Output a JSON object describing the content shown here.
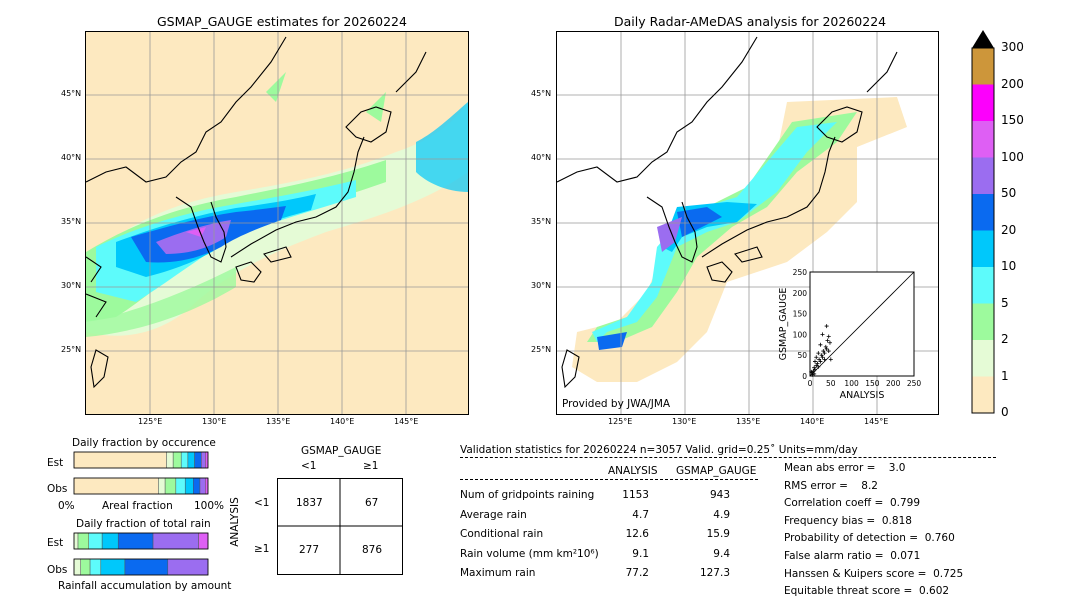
{
  "left_map": {
    "title": "GSMAP_GAUGE estimates for 20260224",
    "lat_labels": [
      "45°N",
      "40°N",
      "35°N",
      "30°N",
      "25°N"
    ],
    "lon_labels": [
      "125°E",
      "130°E",
      "135°E",
      "140°E",
      "145°E"
    ]
  },
  "right_map": {
    "title": "Daily Radar-AMeDAS analysis for 20260224",
    "lat_labels": [
      "45°N",
      "40°N",
      "35°N",
      "30°N",
      "25°N"
    ],
    "lon_labels": [
      "125°E",
      "130°E",
      "135°E",
      "140°E",
      "145°E"
    ],
    "credit": "Provided by JWA/JMA"
  },
  "scatter": {
    "xlabel": "ANALYSIS",
    "ylabel": "GSMAP_GAUGE",
    "ticks": [
      "0",
      "50",
      "100",
      "150",
      "200",
      "250"
    ]
  },
  "colorbar": {
    "ticks": [
      "0",
      "1",
      "2",
      "5",
      "10",
      "20",
      "50",
      "100",
      "150",
      "200",
      "300"
    ],
    "colors": [
      "#fde9c0",
      "#e5fbd6",
      "#9dfa9d",
      "#5dfbfb",
      "#00c8fb",
      "#0a6af0",
      "#9b6df0",
      "#de5ff4",
      "#fc00fc",
      "#cd963a"
    ]
  },
  "occurrence": {
    "title": "Daily fraction by occurence",
    "rows": [
      "Est",
      "Obs"
    ],
    "xlabel_left": "0%",
    "xlabel_mid": "Areal fraction",
    "xlabel_right": "100%"
  },
  "total_rain": {
    "title": "Daily fraction of total rain",
    "rows": [
      "Est",
      "Obs"
    ],
    "xlabel": "Rainfall accumulation by amount"
  },
  "contingency": {
    "col_title": "GSMAP_GAUGE",
    "col_lt": "<1",
    "col_ge": "≥1",
    "row_title": "ANALYSIS",
    "row_lt": "<1",
    "row_ge": "≥1",
    "a": "1837",
    "b": "67",
    "c": "277",
    "d": "876"
  },
  "validation": {
    "header": "Validation statistics for 20260224  n=3057 Valid. grid=0.25˚ Units=mm/day",
    "col1": "ANALYSIS",
    "col2": "GSMAP_GAUGE",
    "rows": [
      {
        "label": "Num of gridpoints raining",
        "a": "1153",
        "g": "943"
      },
      {
        "label": "Average rain",
        "a": "4.7",
        "g": "4.9"
      },
      {
        "label": "Conditional rain",
        "a": "12.6",
        "g": "15.9"
      },
      {
        "label": "Rain volume (mm km²10⁶)",
        "a": "9.1",
        "g": "9.4"
      },
      {
        "label": "Maximum rain",
        "a": "77.2",
        "g": "127.3"
      }
    ],
    "scores": [
      "Mean abs error =    3.0",
      "RMS error =    8.2",
      "Correlation coeff =  0.799",
      "Frequency bias =  0.818",
      "Probability of detection =  0.760",
      "False alarm ratio =  0.071",
      "Hanssen & Kuipers score =  0.725",
      "Equitable threat score =  0.602"
    ]
  },
  "chart_data": [
    {
      "type": "scatter",
      "title": "",
      "xlabel": "ANALYSIS",
      "ylabel": "GSMAP_GAUGE",
      "xlim": [
        0,
        250
      ],
      "ylim": [
        0,
        250
      ],
      "points": [
        [
          5,
          8
        ],
        [
          8,
          12
        ],
        [
          10,
          20
        ],
        [
          12,
          15
        ],
        [
          15,
          25
        ],
        [
          18,
          30
        ],
        [
          20,
          22
        ],
        [
          22,
          40
        ],
        [
          25,
          35
        ],
        [
          28,
          50
        ],
        [
          30,
          45
        ],
        [
          32,
          60
        ],
        [
          35,
          55
        ],
        [
          38,
          70
        ],
        [
          40,
          65
        ],
        [
          42,
          85
        ],
        [
          45,
          60
        ],
        [
          48,
          80
        ],
        [
          30,
          100
        ],
        [
          25,
          75
        ],
        [
          15,
          45
        ],
        [
          20,
          55
        ],
        [
          35,
          40
        ],
        [
          50,
          40
        ],
        [
          45,
          95
        ],
        [
          40,
          120
        ],
        [
          10,
          5
        ],
        [
          6,
          3
        ],
        [
          3,
          10
        ],
        [
          12,
          35
        ]
      ]
    },
    {
      "type": "bar",
      "title": "Daily fraction by occurence",
      "categories": [
        "Est",
        "Obs"
      ],
      "series": [
        {
          "name": "0",
          "values": [
            0.69,
            0.63
          ]
        },
        {
          "name": "1",
          "values": [
            0.05,
            0.05
          ]
        },
        {
          "name": "2",
          "values": [
            0.06,
            0.08
          ]
        },
        {
          "name": "5",
          "values": [
            0.05,
            0.07
          ]
        },
        {
          "name": "10",
          "values": [
            0.05,
            0.06
          ]
        },
        {
          "name": "20",
          "values": [
            0.05,
            0.05
          ]
        },
        {
          "name": "50",
          "values": [
            0.03,
            0.04
          ]
        },
        {
          "name": "100",
          "values": [
            0.02,
            0.02
          ]
        }
      ]
    },
    {
      "type": "bar",
      "title": "Daily fraction of total rain",
      "categories": [
        "Est",
        "Obs"
      ],
      "series": [
        {
          "name": "1",
          "values": [
            0.03,
            0.05
          ]
        },
        {
          "name": "2",
          "values": [
            0.08,
            0.07
          ]
        },
        {
          "name": "5",
          "values": [
            0.1,
            0.08
          ]
        },
        {
          "name": "10",
          "values": [
            0.12,
            0.18
          ]
        },
        {
          "name": "20",
          "values": [
            0.26,
            0.32
          ]
        },
        {
          "name": "50",
          "values": [
            0.34,
            0.3
          ]
        },
        {
          "name": "100",
          "values": [
            0.07,
            0.0
          ]
        }
      ]
    }
  ]
}
